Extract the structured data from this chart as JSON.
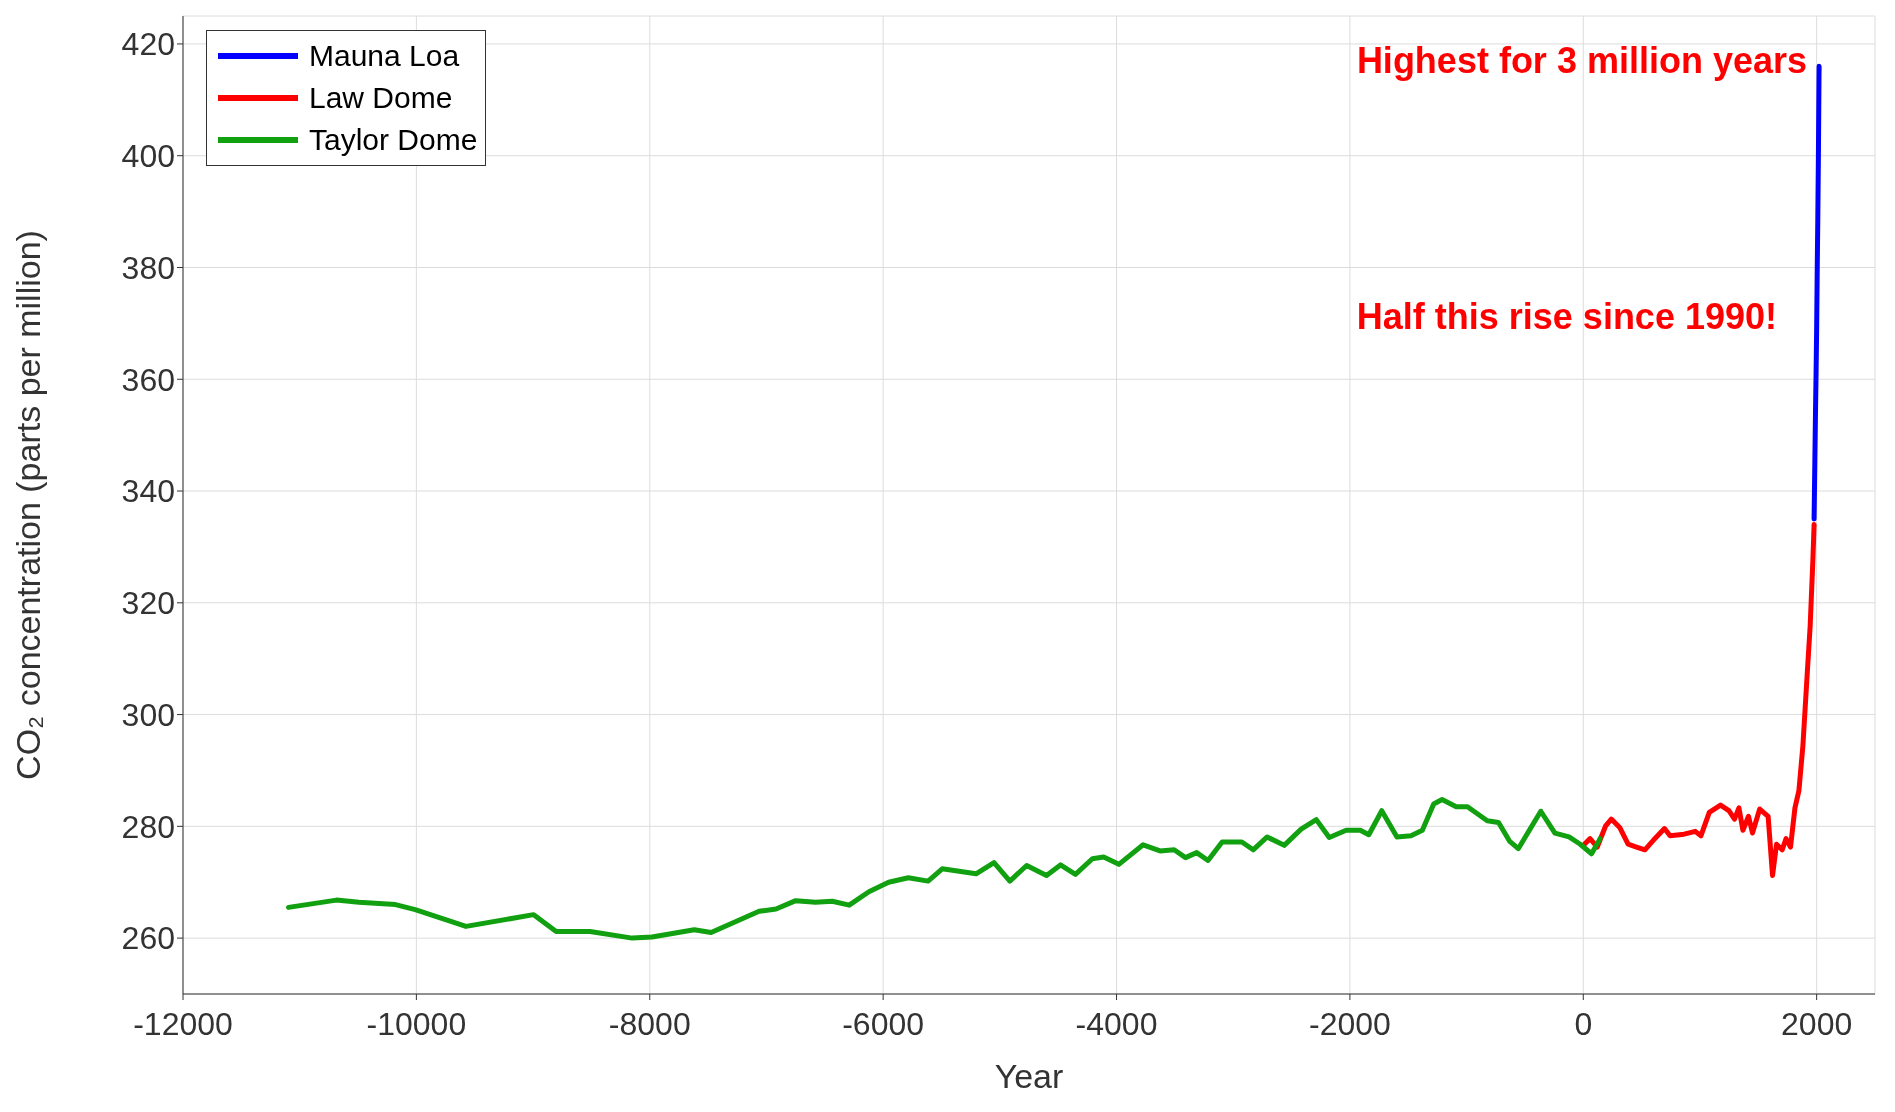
{
  "chart_data": {
    "type": "line",
    "xlabel": "Year",
    "ylabel": "CO₂ concentration (parts per million)",
    "xlim": [
      -12000,
      2500
    ],
    "xticks": [
      -12000,
      -10000,
      -8000,
      -6000,
      -4000,
      -2000,
      0,
      2000
    ],
    "ylim": [
      250,
      425
    ],
    "yticks": [
      260,
      280,
      300,
      320,
      340,
      360,
      380,
      400,
      420
    ],
    "grid": true,
    "legend": "top left",
    "marker": "none",
    "line_style": "solid",
    "annotations": [
      "Highest for 3 million years",
      "Half this rise since 1990!"
    ],
    "series": [
      {
        "name": "Mauna Loa",
        "color": "#0000ff",
        "x": [
          1978,
          1985,
          1990,
          1995,
          2000,
          2005,
          2010,
          2015,
          2020,
          2021
        ],
        "values": [
          335,
          346,
          354,
          361,
          369,
          380,
          389,
          400,
          414,
          416
        ]
      },
      {
        "name": "Law Dome",
        "color": "#ff0000",
        "x": [
          10,
          58,
          120,
          192,
          240,
          312,
          384,
          456,
          528,
          600,
          696,
          744,
          864,
          960,
          1008,
          1080,
          1176,
          1248,
          1296,
          1334,
          1368,
          1416,
          1450,
          1512,
          1584,
          1622,
          1656,
          1704,
          1738,
          1776,
          1814,
          1848,
          1882,
          1920,
          1944,
          1968,
          1978
        ],
        "values": [
          276.8,
          277.8,
          276.3,
          280.1,
          281.3,
          279.8,
          276.8,
          276.3,
          275.8,
          277.5,
          279.6,
          278.3,
          278.6,
          279.1,
          278.3,
          282.5,
          283.8,
          282.8,
          281.3,
          283.3,
          279.3,
          281.8,
          278.8,
          283.1,
          281.8,
          271.2,
          276.8,
          275.8,
          277.8,
          276.3,
          283.3,
          286.4,
          294.4,
          307.6,
          315.7,
          327.8,
          334
        ]
      },
      {
        "name": "Taylor Dome",
        "color": "#10a010",
        "x": [
          -11096,
          -10686,
          -10493,
          -10179,
          -10010,
          -9575,
          -8995,
          -8802,
          -8512,
          -8150,
          -7981,
          -7619,
          -7474,
          -7063,
          -6918,
          -6749,
          -6580,
          -6436,
          -6291,
          -6122,
          -5953,
          -5784,
          -5615,
          -5494,
          -5204,
          -5050,
          -4914,
          -4770,
          -4600,
          -4480,
          -4352,
          -4207,
          -4110,
          -3980,
          -3772,
          -3627,
          -3506,
          -3409,
          -3313,
          -3216,
          -3095,
          -2926,
          -2829,
          -2709,
          -2563,
          -2418,
          -2288,
          -2177,
          -2032,
          -1911,
          -1838,
          -1727,
          -1597,
          -1476,
          -1379,
          -1282,
          -1210,
          -1089,
          -992,
          -823,
          -726,
          -630,
          -557,
          -364,
          -243,
          -122,
          -26,
          71,
          144
        ],
        "values": [
          265.5,
          266.8,
          266.4,
          266.0,
          265.1,
          262.1,
          264.2,
          261.2,
          261.2,
          260.0,
          260.2,
          261.5,
          261.0,
          264.8,
          265.2,
          266.7,
          266.4,
          266.6,
          265.9,
          268.3,
          270.0,
          270.8,
          270.2,
          272.4,
          271.5,
          273.5,
          270.2,
          273.0,
          271.2,
          273.1,
          271.4,
          274.2,
          274.5,
          273.2,
          276.7,
          275.6,
          275.8,
          274.4,
          275.3,
          273.9,
          277.2,
          277.2,
          275.8,
          278.1,
          276.6,
          279.5,
          281.2,
          278.0,
          279.3,
          279.3,
          278.5,
          282.8,
          278.1,
          278.3,
          279.3,
          284.0,
          284.8,
          283.5,
          283.5,
          281.0,
          280.7,
          277.3,
          276.0,
          282.7,
          278.8,
          278.1,
          276.8,
          275.1,
          277.8
        ]
      }
    ]
  }
}
